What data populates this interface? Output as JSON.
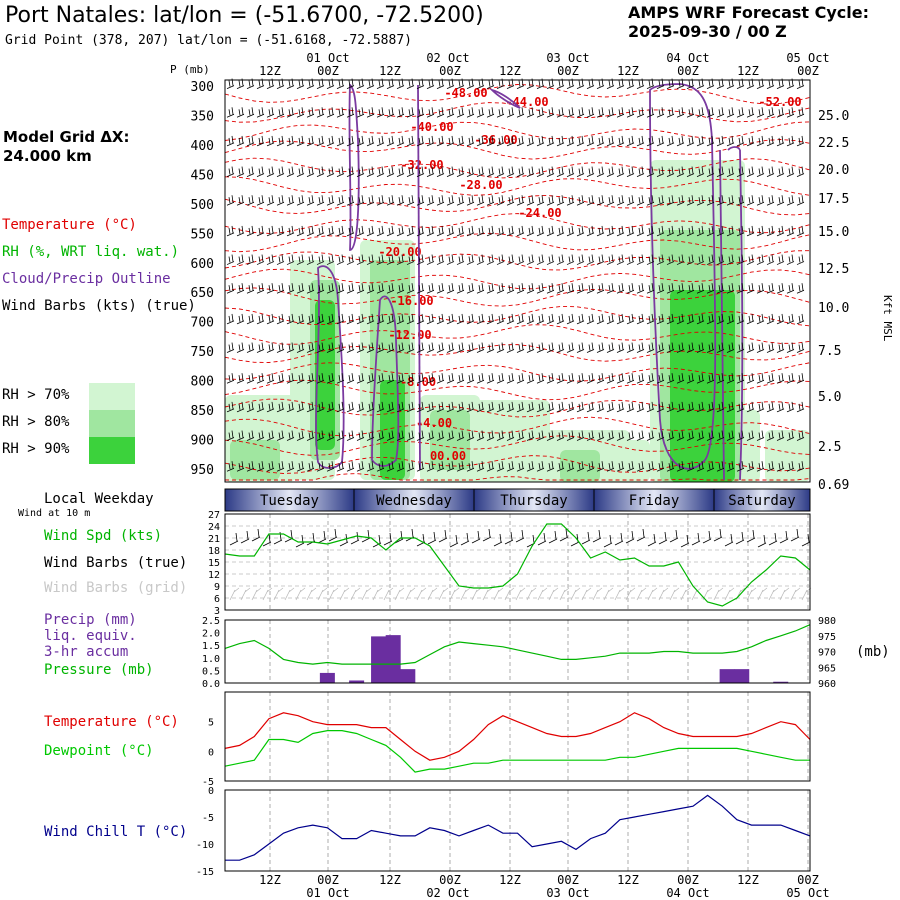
{
  "header": {
    "title": "Port Natales:  lat/lon = (-51.6700, -72.5200)",
    "subtitle": "Grid Point (378, 207) lat/lon = (-51.6168, -72.5887)",
    "cycle_line1": "AMPS WRF Forecast Cycle:",
    "cycle_line2": "2025-09-30 / 00  Z"
  },
  "model_grid": {
    "line1": "Model Grid ΔX:",
    "line2": " 24.000 km"
  },
  "legend": {
    "temperature": "Temperature (°C)",
    "rh": "RH (%, WRT liq. wat.)",
    "cloud": "Cloud/Precip Outline",
    "wind_barbs": "Wind Barbs (kts) (true)",
    "rh70": "RH > 70%",
    "rh80": "RH > 80%",
    "rh90": "RH > 90%",
    "colors": {
      "rh70": "#d2f5d2",
      "rh80": "#a0e6a0",
      "rh90": "#3cd23c",
      "temperature": "#e00000",
      "cloud": "#7a3aa0",
      "wind": "#00b400",
      "precip": "#6a2ea0",
      "dewpoint": "#00c800",
      "windchill": "#00008c"
    }
  },
  "labels": {
    "p_mb": "P (mb)",
    "kft_msl": "Kft MSL",
    "local_weekday": "Local Weekday",
    "wind_at_10m": "Wind at 10 m",
    "wind_spd": "Wind Spd (kts)",
    "wind_barbs_true": "Wind Barbs (true)",
    "wind_barbs_grid": "Wind Barbs (grid)",
    "precip1": "Precip (mm)",
    "precip2": "liq. equiv.",
    "precip3": "3-hr accum",
    "pressure": "Pressure (mb)",
    "mb_unit": "(mb)",
    "temperature": "Temperature (°C)",
    "dewpoint": "Dewpoint (°C)",
    "windchill": "Wind Chill T (°C)"
  },
  "chart_data": [
    {
      "type": "heatmap",
      "name": "cross-section",
      "x_hours": [
        0,
        120
      ],
      "pressure_levels": [
        300,
        350,
        400,
        450,
        500,
        550,
        600,
        650,
        700,
        750,
        800,
        850,
        900,
        950
      ],
      "kft_ticks": [
        "25.0",
        "22.5",
        "20.0",
        "17.5",
        "15.0",
        "12.5",
        "10.0",
        "7.5",
        "5.0",
        "2.5",
        "0.69"
      ],
      "top_time_labels": [
        "12Z",
        "00Z",
        "12Z",
        "00Z",
        "12Z",
        "00Z",
        "12Z",
        "00Z",
        "12Z",
        "00Z"
      ],
      "date_labels": [
        "01 Oct",
        "02 Oct",
        "03 Oct",
        "04 Oct",
        "05 Oct"
      ],
      "temperature_labels": [
        "-52.00",
        "-48.00",
        "-44.00",
        "-40.00",
        "-36.00",
        "-32.00",
        "-28.00",
        "-24.00",
        "-20.00",
        "-16.00",
        "-12.00",
        "-8.00",
        "-4.00",
        "00.00"
      ]
    },
    {
      "type": "table",
      "name": "weekdays",
      "days": [
        "Tuesday",
        "Wednesday",
        "Thursday",
        "Friday",
        "Saturday"
      ]
    },
    {
      "type": "line",
      "name": "wind-speed",
      "ylabel": "Wind Spd (kts)",
      "yticks": [
        3,
        6,
        9,
        12,
        15,
        18,
        21,
        24,
        27
      ],
      "ylim": [
        3,
        27
      ],
      "x": [
        0,
        3,
        6,
        9,
        12,
        15,
        18,
        21,
        24,
        27,
        30,
        33,
        36,
        39,
        42,
        45,
        48,
        51,
        54,
        57,
        60,
        63,
        66,
        69,
        72,
        75,
        78,
        81,
        84,
        87,
        90,
        93,
        96,
        99,
        102,
        105,
        108,
        111,
        114,
        117,
        120
      ],
      "values": [
        17,
        16.5,
        16.5,
        22,
        22,
        20,
        20,
        19.5,
        20.5,
        21.5,
        21,
        18,
        21,
        21,
        19,
        14,
        9,
        8.5,
        8.5,
        9,
        12,
        19,
        24.5,
        24.5,
        21,
        16,
        17.5,
        15.5,
        16,
        14,
        14,
        15,
        9,
        5,
        4,
        6,
        10,
        13,
        16.5,
        16,
        13
      ]
    },
    {
      "type": "bar",
      "name": "precip-pressure",
      "precip_ylabel": "Precip (mm)",
      "precip_yticks": [
        "0.0",
        "0.5",
        "1.0",
        "1.5",
        "2.0",
        "2.5"
      ],
      "precip_ylim": [
        0,
        2.5
      ],
      "pressure_yticks": [
        960,
        965,
        970,
        975,
        980
      ],
      "pressure_ylim": [
        960,
        980
      ],
      "precip_x": [
        21,
        27,
        31.5,
        34.5,
        37.5,
        100,
        103,
        106,
        114
      ],
      "precip_values": [
        0.4,
        0.1,
        1.85,
        1.9,
        0.55,
        0.02,
        0.55,
        0.55,
        0.05
      ],
      "pressure_x": [
        0,
        3,
        6,
        9,
        12,
        15,
        18,
        21,
        24,
        27,
        30,
        33,
        36,
        39,
        42,
        45,
        48,
        51,
        54,
        57,
        60,
        63,
        66,
        69,
        72,
        75,
        78,
        81,
        84,
        87,
        90,
        93,
        96,
        99,
        102,
        105,
        108,
        111,
        114,
        117,
        120
      ],
      "pressure_values": [
        971,
        972.5,
        973.5,
        971,
        967.5,
        966.5,
        966,
        966.5,
        966,
        966,
        966,
        966,
        966,
        966.5,
        969,
        971.5,
        973,
        972.5,
        972,
        971.5,
        970.5,
        969.5,
        968.5,
        967.5,
        967.5,
        968,
        968.5,
        969.5,
        969.5,
        969.5,
        970,
        970,
        969.5,
        969.5,
        969.5,
        970,
        971.5,
        973.5,
        975,
        976.5,
        978.5
      ]
    },
    {
      "type": "line",
      "name": "temperature-dewpoint",
      "yticks": [
        -5,
        0,
        5
      ],
      "ylim": [
        -5,
        10
      ],
      "x": [
        0,
        3,
        6,
        9,
        12,
        15,
        18,
        21,
        24,
        27,
        30,
        33,
        36,
        39,
        42,
        45,
        48,
        51,
        54,
        57,
        60,
        63,
        66,
        69,
        72,
        75,
        78,
        81,
        84,
        87,
        90,
        93,
        96,
        99,
        102,
        105,
        108,
        111,
        114,
        117,
        120
      ],
      "series": [
        {
          "name": "Temperature (°C)",
          "values": [
            0.5,
            1,
            2.5,
            5.5,
            6.5,
            6,
            5,
            4.5,
            4.5,
            4.5,
            4,
            4,
            2,
            0,
            -1.5,
            -1,
            0,
            2,
            4.5,
            6,
            5,
            4,
            3,
            2.5,
            2.5,
            3,
            4,
            5,
            6.5,
            5.5,
            4,
            3,
            2.5,
            2.5,
            2.5,
            2.5,
            3,
            4,
            5,
            4.5,
            2
          ]
        },
        {
          "name": "Dewpoint (°C)",
          "values": [
            -2.5,
            -2,
            -1.5,
            2,
            2,
            1.5,
            3,
            3.5,
            3.5,
            3,
            2,
            1,
            -1,
            -3.5,
            -3,
            -3,
            -2.5,
            -2,
            -2,
            -1.5,
            -1.5,
            -1.5,
            -1.5,
            -1.5,
            -1.5,
            -1.5,
            -1.5,
            -1,
            -1,
            -0.5,
            0,
            0.5,
            0.5,
            0.5,
            0.5,
            0.5,
            0,
            -0.5,
            -1,
            -1.5,
            -1.5
          ]
        }
      ]
    },
    {
      "type": "line",
      "name": "wind-chill",
      "ylabel": "Wind Chill T (°C)",
      "yticks": [
        -15,
        -10,
        -5,
        0
      ],
      "ylim": [
        -15,
        0
      ],
      "x": [
        0,
        3,
        6,
        9,
        12,
        15,
        18,
        21,
        24,
        27,
        30,
        33,
        36,
        39,
        42,
        45,
        48,
        51,
        54,
        57,
        60,
        63,
        66,
        69,
        72,
        75,
        78,
        81,
        84,
        87,
        90,
        93,
        96,
        99,
        102,
        105,
        108,
        111,
        114,
        117,
        120
      ],
      "values": [
        -13,
        -13,
        -12,
        -10,
        -8,
        -7,
        -6.5,
        -7,
        -9,
        -9,
        -7.5,
        -8,
        -8.5,
        -8.5,
        -7,
        -7.5,
        -8.5,
        -7.5,
        -6.5,
        -8,
        -8,
        -10.5,
        -10,
        -9.5,
        -11,
        -9,
        -8,
        -5.5,
        -5,
        -4.5,
        -4,
        -3.5,
        -3,
        -1,
        -3,
        -5.5,
        -6.5,
        -6.5,
        -6.5,
        -7.5,
        -8.5
      ]
    }
  ]
}
